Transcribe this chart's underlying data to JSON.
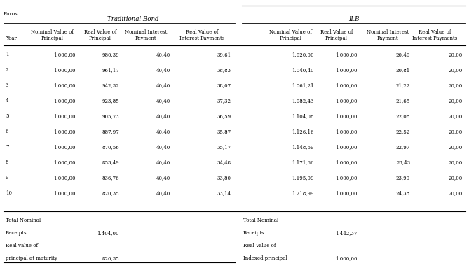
{
  "euros_label": "Euros",
  "year_label": "Year",
  "trad_header": "Traditional Bond",
  "ilb_header": "ILB",
  "col_headers_trad": [
    [
      "Nominal Value of",
      "Principal"
    ],
    [
      "Real Value of",
      "Principal"
    ],
    [
      "Nominal Interest",
      "Payment"
    ],
    [
      "Real Value of",
      "Interest Payments"
    ]
  ],
  "col_headers_ilb": [
    [
      "Nominal Value of",
      "Principal"
    ],
    [
      "Real Value of",
      "Principal"
    ],
    [
      "Nominal Interest",
      "Payment"
    ],
    [
      "Real Value of",
      "Interest Payments"
    ]
  ],
  "rows": [
    [
      1,
      "1.000,00",
      "980,39",
      "40,40",
      "39,61",
      "1.020,00",
      "1.000,00",
      "20,40",
      "20,00"
    ],
    [
      2,
      "1.000,00",
      "961,17",
      "40,40",
      "38,83",
      "1.040,40",
      "1.000,00",
      "20,81",
      "20,00"
    ],
    [
      3,
      "1.000,00",
      "942,32",
      "40,40",
      "38,07",
      "1.061,21",
      "1.000,00",
      "21,22",
      "20,00"
    ],
    [
      4,
      "1.000,00",
      "923,85",
      "40,40",
      "37,32",
      "1.082,43",
      "1.000,00",
      "21,65",
      "20,00"
    ],
    [
      5,
      "1.000,00",
      "905,73",
      "40,40",
      "36,59",
      "1.104,08",
      "1.000,00",
      "22,08",
      "20,00"
    ],
    [
      6,
      "1.000,00",
      "887,97",
      "40,40",
      "35,87",
      "1.126,16",
      "1.000,00",
      "22,52",
      "20,00"
    ],
    [
      7,
      "1.000,00",
      "870,56",
      "40,40",
      "35,17",
      "1.148,69",
      "1.000,00",
      "22,97",
      "20,00"
    ],
    [
      8,
      "1.000,00",
      "853,49",
      "40,40",
      "34,48",
      "1.171,66",
      "1.000,00",
      "23,43",
      "20,00"
    ],
    [
      9,
      "1.000,00",
      "836,76",
      "40,40",
      "33,80",
      "1.195,09",
      "1.000,00",
      "23,90",
      "20,00"
    ],
    [
      10,
      "1.000,00",
      "820,35",
      "40,40",
      "33,14",
      "1.218,99",
      "1.000,00",
      "24,38",
      "20,00"
    ]
  ],
  "footer_trad_labels": [
    "Total Nominal",
    "Receipts",
    "Real value of",
    "principal at maturity"
  ],
  "footer_trad_values": [
    "",
    "1.404,00",
    "",
    "820,35"
  ],
  "footer_ilb_labels": [
    "Total Nominal",
    "Receipts",
    "Real Value of",
    "Indexed principal"
  ],
  "footer_ilb_values": [
    "",
    "1.442,37",
    "",
    "1.000,00"
  ],
  "font_size": 5.0,
  "header_font_size": 6.2,
  "bg_color": "#ffffff",
  "line_color": "#000000"
}
